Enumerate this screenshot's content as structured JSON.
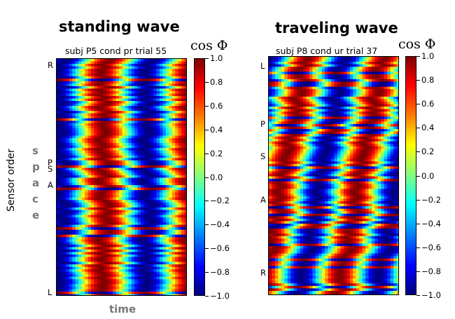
{
  "left_panel": {
    "header": "standing wave",
    "subtitle": "subj P5 cond pr trial 55",
    "sensor_labels": [
      {
        "text": "R",
        "row": 0.03
      },
      {
        "text": "P",
        "row": 0.44
      },
      {
        "text": "S",
        "row": 0.465
      },
      {
        "text": "A",
        "row": 0.535
      },
      {
        "text": "L",
        "row": 0.985
      }
    ]
  },
  "right_panel": {
    "header": "traveling wave",
    "subtitle": "subj P8 cond ur trial 37",
    "sensor_labels": [
      {
        "text": "L",
        "row": 0.04
      },
      {
        "text": "P",
        "row": 0.285
      },
      {
        "text": "S",
        "row": 0.42
      },
      {
        "text": "A",
        "row": 0.6
      },
      {
        "text": "R",
        "row": 0.905
      }
    ]
  },
  "colorbar": {
    "label": "cos Φ",
    "ticks": [
      "1.0",
      "0.8",
      "0.6",
      "0.4",
      "0.2",
      "0.0",
      "−0.2",
      "−0.4",
      "−0.6",
      "−0.8",
      "−1.0"
    ],
    "range": [
      -1.0,
      1.0
    ],
    "colormap": "jet"
  },
  "axes": {
    "y_label": "Sensor order",
    "space_label": "space",
    "time_label": "time"
  },
  "chart_data": [
    {
      "type": "heatmap",
      "title": "subj P5 cond pr trial 55",
      "xlabel": "time",
      "ylabel": "Sensor order",
      "value_range": [
        -1.0,
        1.0
      ],
      "pattern": "standing",
      "cycles_across_time": 1.5,
      "row_lag_cycles": 0.0
    },
    {
      "type": "heatmap",
      "title": "subj P8 cond ur trial 37",
      "xlabel": "time",
      "ylabel": "Sensor order",
      "value_range": [
        -1.0,
        1.0
      ],
      "pattern": "traveling",
      "cycles_across_time": 1.7,
      "row_lag_cycles": 0.55
    }
  ]
}
